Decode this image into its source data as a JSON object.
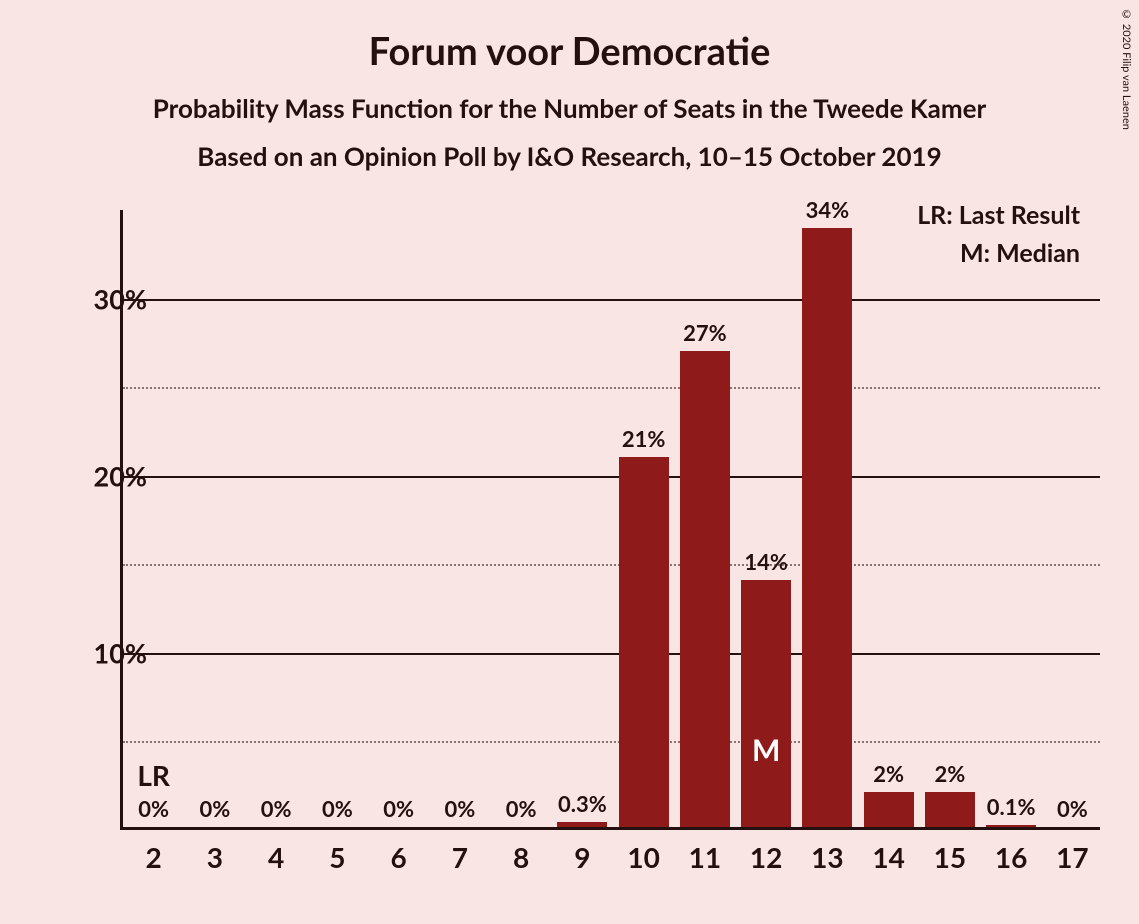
{
  "title": "Forum voor Democratie",
  "subtitle1": "Probability Mass Function for the Number of Seats in the Tweede Kamer",
  "subtitle2": "Based on an Opinion Poll by I&O Research, 10–15 October 2019",
  "copyright": "© 2020 Filip van Laenen",
  "legend": {
    "lr": "LR: Last Result",
    "m": "M: Median"
  },
  "chart": {
    "type": "bar",
    "background_color": "#fae5e5",
    "bar_color": "#8e1a1a",
    "axis_color": "#24100f",
    "grid_major_color": "#24100f",
    "grid_minor_color": "#8a7271",
    "text_color": "#24100f",
    "median_text_color": "#ffffff",
    "ylim": [
      0,
      35
    ],
    "ymajor": [
      10,
      20,
      30
    ],
    "yminor": [
      5,
      15,
      25
    ],
    "ytick_format": "%",
    "bar_width_ratio": 0.82,
    "categories": [
      2,
      3,
      4,
      5,
      6,
      7,
      8,
      9,
      10,
      11,
      12,
      13,
      14,
      15,
      16,
      17
    ],
    "values": [
      0,
      0,
      0,
      0,
      0,
      0,
      0,
      0.3,
      21,
      27,
      14,
      34,
      2,
      2,
      0.1,
      0
    ],
    "labels": [
      "0%",
      "0%",
      "0%",
      "0%",
      "0%",
      "0%",
      "0%",
      "0.3%",
      "21%",
      "27%",
      "14%",
      "34%",
      "2%",
      "2%",
      "0.1%",
      "0%"
    ],
    "lr_category": 2,
    "lr_text": "LR",
    "median_category": 12,
    "median_text": "M",
    "title_fontsize": 38,
    "subtitle_fontsize": 26,
    "axis_label_fontsize": 27,
    "bar_label_fontsize": 22,
    "xtick_fontsize": 28
  }
}
